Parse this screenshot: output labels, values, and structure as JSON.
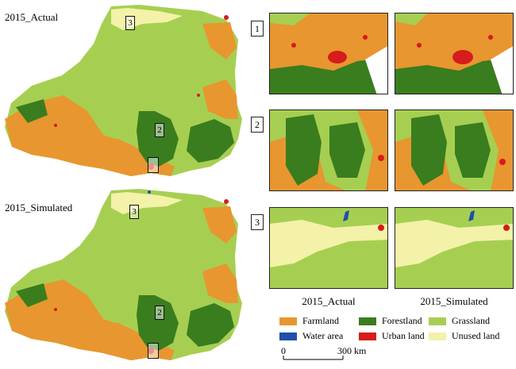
{
  "maps": {
    "actual_title": "2015_Actual",
    "simulated_title": "2015_Simulated"
  },
  "map_region_labels": [
    "3",
    "2",
    "1"
  ],
  "panels": {
    "row_numbers": [
      "1",
      "2",
      "3"
    ],
    "column_labels": [
      "2015_Actual",
      "2015_Simulated"
    ]
  },
  "legend": {
    "items": [
      {
        "label": "Farmland",
        "color": "#e8962f"
      },
      {
        "label": "Forestland",
        "color": "#3a7d1e"
      },
      {
        "label": "Grassland",
        "color": "#a6cf52"
      },
      {
        "label": "Water area",
        "color": "#1f4fa8"
      },
      {
        "label": "Urban land",
        "color": "#d61c1c"
      },
      {
        "label": "Unused land",
        "color": "#f3f2a8"
      }
    ]
  },
  "scale_bar": {
    "start": "0",
    "end": "300 km"
  }
}
